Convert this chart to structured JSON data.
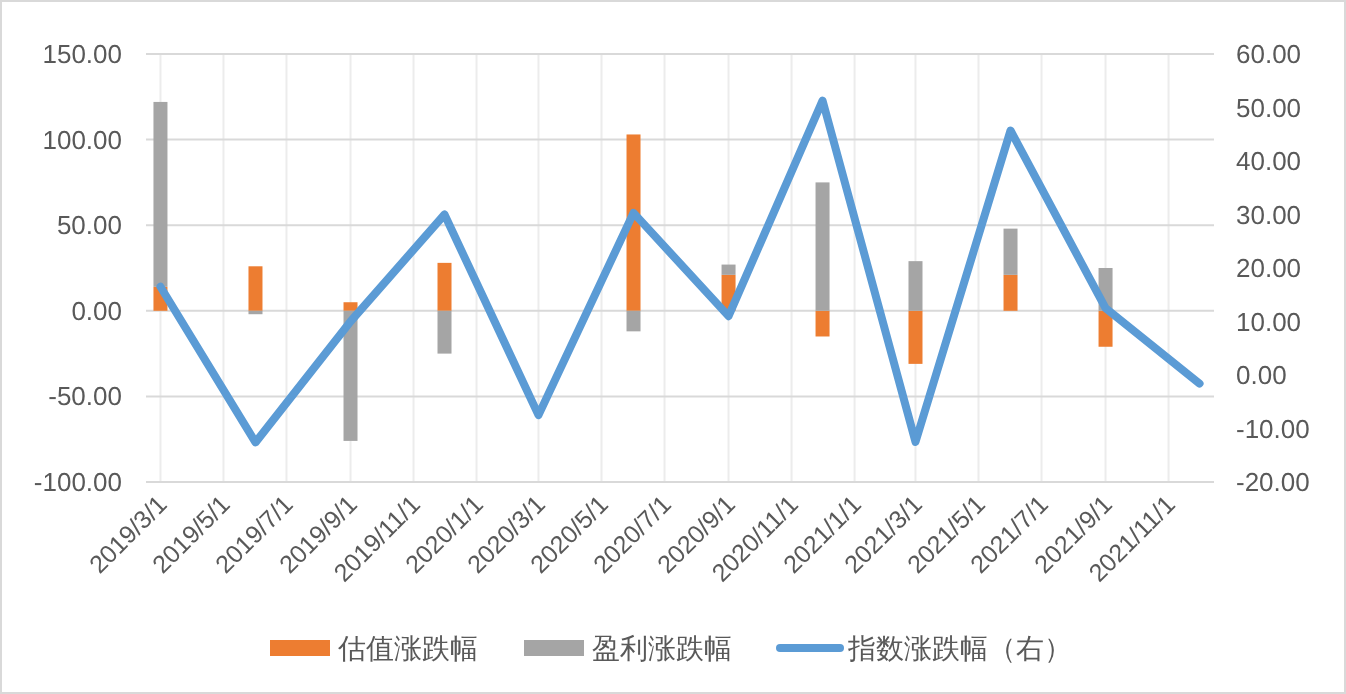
{
  "chart_data": {
    "type": "bar",
    "stacked": true,
    "x": [
      "2019-03-01",
      "2019-06-01",
      "2019-09-01",
      "2019-12-01",
      "2020-03-01",
      "2020-06-01",
      "2020-09-01",
      "2020-12-01",
      "2021-03-01",
      "2021-06-01",
      "2021-09-01",
      "2021-12-01"
    ],
    "series": [
      {
        "name": "估值涨跌幅",
        "color": "#ed7d31",
        "values": [
          14,
          26,
          5,
          28,
          null,
          103,
          21,
          -15,
          -31,
          21,
          -21,
          null
        ]
      },
      {
        "name": "盈利涨跌幅",
        "color": "#a5a5a5",
        "values": [
          108,
          -2,
          -76,
          -25,
          null,
          -12,
          6,
          75,
          29,
          27,
          25,
          null
        ]
      },
      {
        "name": "指数涨跌幅（右）",
        "color": "#5b9bd5",
        "type": "line",
        "axis": "y2",
        "values": [
          16.5,
          -12.6,
          10,
          30,
          -7.5,
          30.3,
          11,
          51.3,
          -12.5,
          45.7,
          12.5,
          -1.6
        ]
      }
    ],
    "xlim": [
      "2019-02-15",
      "2021-12-15"
    ],
    "xticks": [
      {
        "value": "2019-03-01",
        "label": "2019/3/1"
      },
      {
        "value": "2019-05-01",
        "label": "2019/5/1"
      },
      {
        "value": "2019-07-01",
        "label": "2019/7/1"
      },
      {
        "value": "2019-09-01",
        "label": "2019/9/1"
      },
      {
        "value": "2019-11-01",
        "label": "2019/11/1"
      },
      {
        "value": "2020-01-01",
        "label": "2020/1/1"
      },
      {
        "value": "2020-03-01",
        "label": "2020/3/1"
      },
      {
        "value": "2020-05-01",
        "label": "2020/5/1"
      },
      {
        "value": "2020-07-01",
        "label": "2020/7/1"
      },
      {
        "value": "2020-09-01",
        "label": "2020/9/1"
      },
      {
        "value": "2020-11-01",
        "label": "2020/11/1"
      },
      {
        "value": "2021-01-01",
        "label": "2021/1/1"
      },
      {
        "value": "2021-03-01",
        "label": "2021/3/1"
      },
      {
        "value": "2021-05-01",
        "label": "2021/5/1"
      },
      {
        "value": "2021-07-01",
        "label": "2021/7/1"
      },
      {
        "value": "2021-09-01",
        "label": "2021/9/1"
      },
      {
        "value": "2021-11-01",
        "label": "2021/11/1"
      }
    ],
    "ylim": [
      -100,
      150
    ],
    "yticks": [
      {
        "value": -100,
        "label": "-100.00"
      },
      {
        "value": -50,
        "label": "-50.00"
      },
      {
        "value": 0,
        "label": "0.00"
      },
      {
        "value": 50,
        "label": "50.00"
      },
      {
        "value": 100,
        "label": "100.00"
      },
      {
        "value": 150,
        "label": "150.00"
      }
    ],
    "y2lim": [
      -20,
      60
    ],
    "y2ticks": [
      {
        "value": -20,
        "label": "-20.00"
      },
      {
        "value": -10,
        "label": "-10.00"
      },
      {
        "value": 0,
        "label": "0.00"
      },
      {
        "value": 10,
        "label": "10.00"
      },
      {
        "value": 20,
        "label": "20.00"
      },
      {
        "value": 30,
        "label": "30.00"
      },
      {
        "value": 40,
        "label": "40.00"
      },
      {
        "value": 50,
        "label": "50.00"
      },
      {
        "value": 60,
        "label": "60.00"
      }
    ],
    "grid": true,
    "legend": "bottom"
  }
}
